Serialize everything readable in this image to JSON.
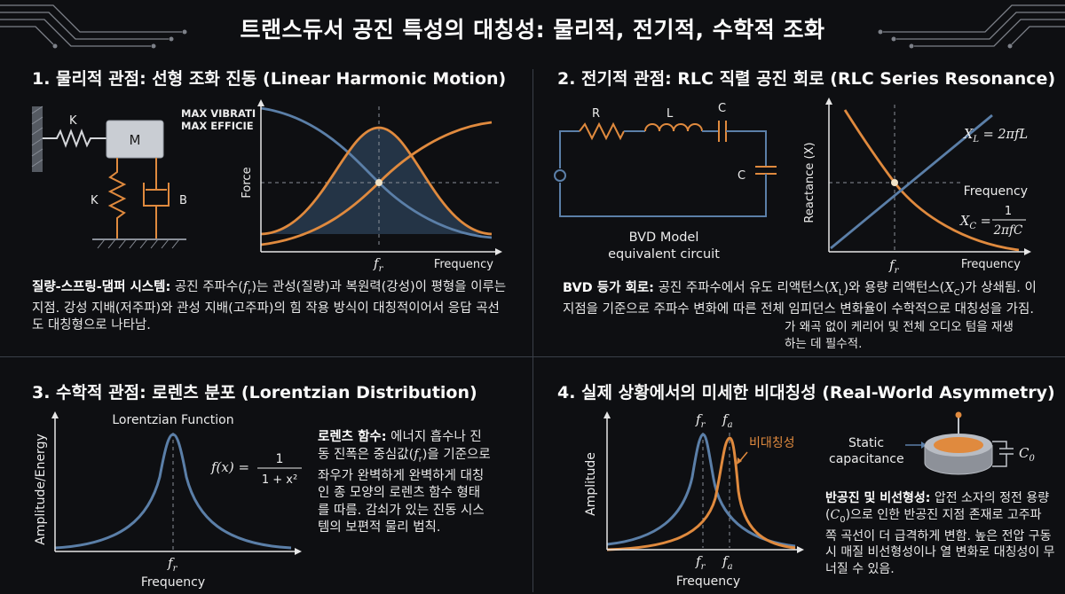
{
  "title": "트랜스듀서 공진 특성의 대칭성: 물리적, 전기적, 수학적 조화",
  "colors": {
    "blue": "#5b7fa8",
    "orange": "#e08a3e",
    "background": "#0e0f12"
  },
  "sections": {
    "physical": {
      "title": "1. 물리적 관점: 선형 조화 진동 (Linear Harmonic Motion)",
      "labels": {
        "spring_top": "K",
        "mass": "M",
        "spring_bottom": "K",
        "damper": "B"
      },
      "max_text_1": "MAX VIBRATI",
      "max_text_2": "MAX EFFICIE",
      "ylabel": "Force",
      "fr_label": "f",
      "fr_sub": "r",
      "xlabel": "Frequency",
      "desc_bold": "질량-스프링-댐퍼 시스템:",
      "desc_a": " 공진 주파수(",
      "desc_f": "f",
      "desc_r": "r",
      "desc_b": ")는 관성(질량)과 복원력(강성)이 평형을 이루는 지점. 강성 지배(저주파)와 관성 지배(고주파)의 힘 작용 방식이 대칭적이어서 응답 곡선도 대칭형으로 나타남."
    },
    "electrical": {
      "title": "2. 전기적 관점: RLC 직렬 공진 회로 (RLC Series Resonance)",
      "labels": {
        "r": "R",
        "l": "L",
        "c_top": "C",
        "c_right": "C"
      },
      "circuit_caption_1": "BVD Model",
      "circuit_caption_2": "equivalent circuit",
      "ylabel": "Reactance (X)",
      "xl_label": "X",
      "xl_sub": "L",
      "xl_eq": " = 2πfL",
      "freq_right_label": "Frequency",
      "xc_label": "X",
      "xc_sub": "C",
      "xc_num": "1",
      "xc_den": "2πfC",
      "fr_label": "f",
      "fr_sub": "r",
      "xlabel": "Frequency",
      "desc_bold": "BVD 등가 회로:",
      "desc_a": " 공진 주파수에서 유도 리액턴스(",
      "desc_xl": "X",
      "desc_xl_sub": "L",
      "desc_b": ")와 용량 리액턴스(",
      "desc_xc": "X",
      "desc_xc_sub": "C",
      "desc_c": ")가 상쇄됨. 이 지점을 기준으로 주파수 변화에 따른 전체 임피던스 변화율이 수학적으로 대칭성을 가짐.",
      "note": "가 왜곡 없이 케리어 및 전체 오디오 텀을 재생하는 데 필수적."
    },
    "math": {
      "title": "3. 수학적 관점: 로렌츠 분포 (Lorentzian Distribution)",
      "func_title": "Lorentzian Function",
      "eq_lhs": "f(x) =",
      "eq_num": "1",
      "eq_den": "1 + x²",
      "ylabel": "Amplitude/Energy",
      "fr_label": "f",
      "fr_sub": "r",
      "xlabel": "Frequency",
      "desc_bold": "로렌츠 함수:",
      "desc_a": " 에너지 흡수나 진동 진폭은 중심값(",
      "desc_f": "f",
      "desc_r": "r",
      "desc_b": ")을 기준으로 좌우가 완벽하게 완벽하게 대칭인 종 모양의 로렌츠 함수 형태를 따름. 감쇠가 있는 진동 시스템의 보편적 물리 법칙."
    },
    "real": {
      "title": "4. 실제 상황에서의 미세한 비대칭성 (Real-World Asymmetry)",
      "fr_label": "f",
      "fr_sub": "r",
      "fa_label": "f",
      "fa_sub": "a",
      "asym_label": "비대칭성",
      "ylabel": "Amplitude",
      "xlabel": "Frequency",
      "static_label_1": "Static",
      "static_label_2": "capacitance",
      "c0_label": "C",
      "c0_sub": "0",
      "desc_bold": "반공진 및 비선형성:",
      "desc_a": " 압전 소자의 정전 용량(",
      "desc_c": "C",
      "desc_0": "0",
      "desc_b": ")으로 인한 반공진 지점 존재로 고주파 쪽 곡선이 더 급격하게 변함. 높은 전압 구동 시 매질 비선형성이나 열 변화로 대칭성이 무너질 수 있음."
    }
  }
}
